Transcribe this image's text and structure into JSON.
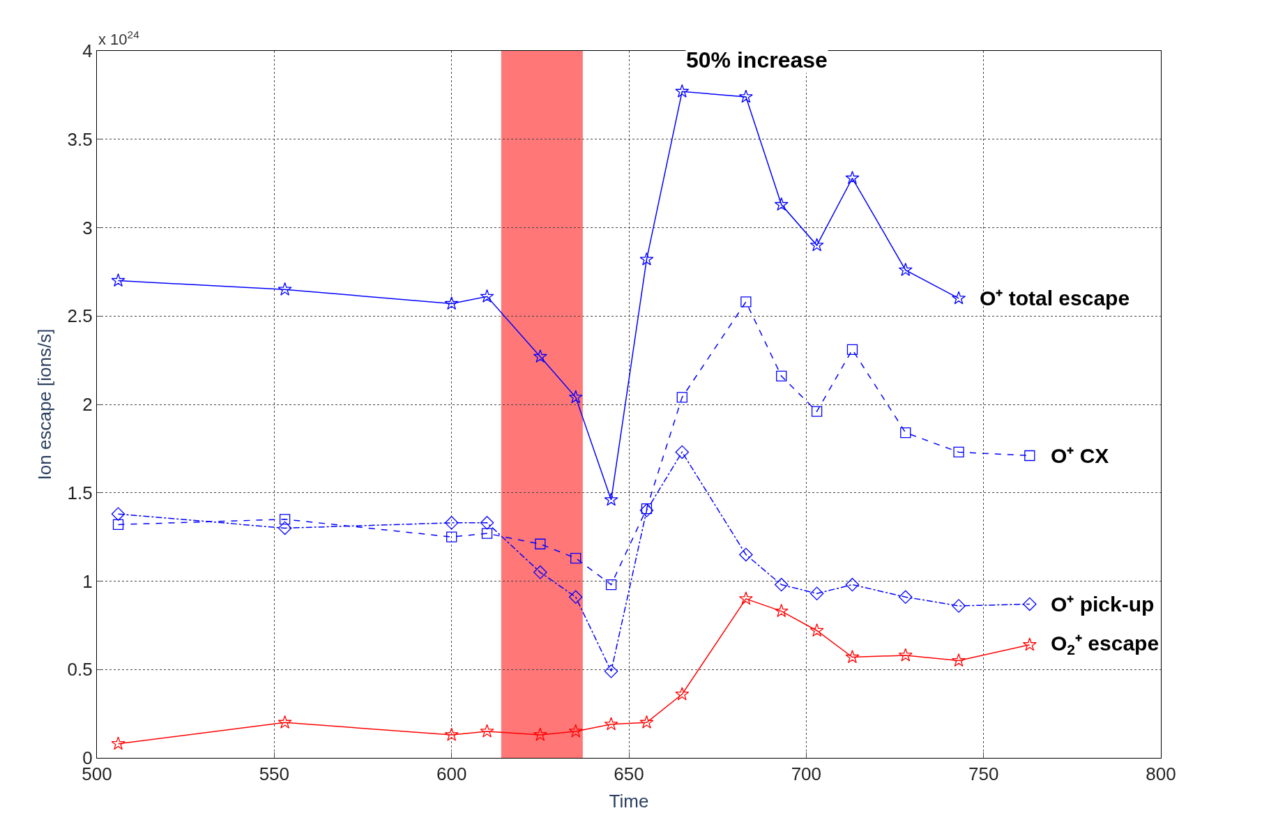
{
  "chart_data": {
    "type": "line",
    "xlabel": "Time",
    "ylabel": "Ion escape [ions/s]",
    "legend": false,
    "grid": true,
    "xlim": [
      500,
      800
    ],
    "xticks": [
      500,
      550,
      600,
      650,
      700,
      750,
      800
    ],
    "ylim": [
      0,
      4
    ],
    "yticks": [
      0,
      0.5,
      1,
      1.5,
      2,
      2.5,
      3,
      3.5,
      4
    ],
    "annotations": [
      "x 10$^{24}$",
      "50% increase"
    ],
    "bands": [
      {
        "axis": "x",
        "from": 614,
        "to": 637,
        "color": "#ff7777"
      }
    ],
    "series": [
      {
        "name": "O⁺ total escape",
        "color": "#0000ff",
        "marker": "star",
        "line_style": "solid",
        "x": [
          506,
          553,
          600,
          610,
          625,
          635,
          645,
          655,
          665,
          683,
          693,
          703,
          713,
          728,
          743
        ],
        "values": [
          2.7,
          2.65,
          2.57,
          2.61,
          2.27,
          2.04,
          1.46,
          2.82,
          3.77,
          3.74,
          3.13,
          2.9,
          3.28,
          2.76,
          2.6
        ]
      },
      {
        "name": "O⁺ CX",
        "color": "#0000ff",
        "marker": "square",
        "line_style": "dashed",
        "x": [
          506,
          553,
          600,
          610,
          625,
          635,
          645,
          655,
          665,
          683,
          693,
          703,
          713,
          728,
          743,
          763
        ],
        "values": [
          1.32,
          1.35,
          1.25,
          1.27,
          1.21,
          1.13,
          0.98,
          1.41,
          2.04,
          2.58,
          2.16,
          1.96,
          2.31,
          1.84,
          1.73,
          1.71
        ]
      },
      {
        "name": "O⁺ pick-up",
        "color": "#0000ff",
        "marker": "diamond",
        "line_style": "dashdot",
        "x": [
          506,
          553,
          600,
          610,
          625,
          635,
          645,
          655,
          665,
          683,
          693,
          703,
          713,
          728,
          743,
          763
        ],
        "values": [
          1.38,
          1.3,
          1.33,
          1.33,
          1.05,
          0.91,
          0.49,
          1.4,
          1.73,
          1.15,
          0.98,
          0.93,
          0.98,
          0.91,
          0.86,
          0.87
        ]
      },
      {
        "name": "O$_{2}$⁺ escape",
        "color": "#ff0000",
        "marker": "star",
        "line_style": "solid",
        "x": [
          506,
          553,
          600,
          610,
          625,
          635,
          645,
          655,
          665,
          683,
          693,
          703,
          713,
          728,
          743,
          763
        ],
        "values": [
          0.08,
          0.2,
          0.13,
          0.15,
          0.13,
          0.15,
          0.19,
          0.2,
          0.36,
          0.9,
          0.83,
          0.72,
          0.57,
          0.58,
          0.55,
          0.64
        ]
      }
    ]
  }
}
